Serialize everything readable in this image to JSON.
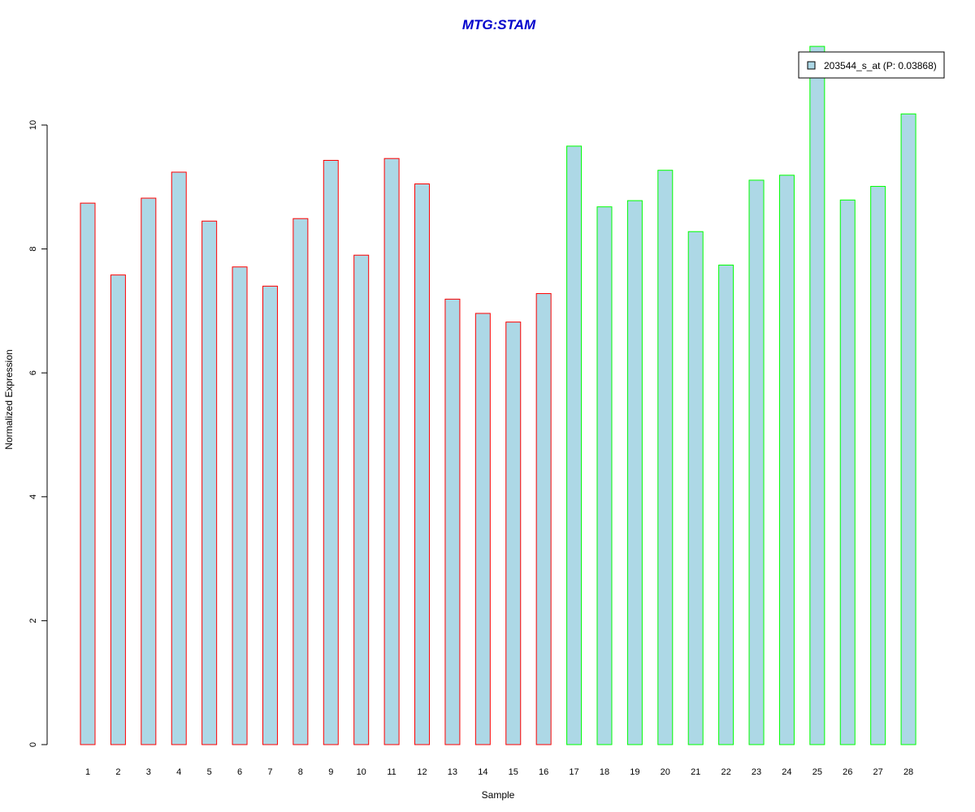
{
  "chart_data": {
    "type": "bar",
    "title": "MTG:STAM",
    "xlabel": "Sample",
    "ylabel": "Normalized Expression",
    "ylim": [
      0,
      11.3
    ],
    "y_ticks": [
      0,
      2,
      4,
      6,
      8,
      10
    ],
    "grid": false,
    "legend_position": "top-right",
    "categories": [
      "1",
      "2",
      "3",
      "4",
      "5",
      "6",
      "7",
      "8",
      "9",
      "10",
      "11",
      "12",
      "13",
      "14",
      "15",
      "16",
      "17",
      "18",
      "19",
      "20",
      "21",
      "22",
      "23",
      "24",
      "25",
      "26",
      "27",
      "28"
    ],
    "series": [
      {
        "name": "203544_s_at (P: 0.03868)",
        "values": [
          8.74,
          7.58,
          8.82,
          9.24,
          8.45,
          7.71,
          7.4,
          8.49,
          9.43,
          7.9,
          9.46,
          9.05,
          7.19,
          6.96,
          6.82,
          7.28,
          9.66,
          8.68,
          8.78,
          9.27,
          8.28,
          7.74,
          9.11,
          9.19,
          11.27,
          8.79,
          9.01,
          10.18
        ]
      }
    ],
    "group_of_bar": [
      "a",
      "a",
      "a",
      "a",
      "a",
      "a",
      "a",
      "a",
      "a",
      "a",
      "a",
      "a",
      "a",
      "a",
      "a",
      "a",
      "b",
      "b",
      "b",
      "b",
      "b",
      "b",
      "b",
      "b",
      "b",
      "b",
      "b",
      "b"
    ]
  },
  "colors": {
    "title": "#0000CC",
    "bar_fill": "#ADD8E6",
    "group_a_border": "#FF0000",
    "group_b_border": "#00FF00",
    "axis": "#000000",
    "legend_border": "#000000"
  }
}
